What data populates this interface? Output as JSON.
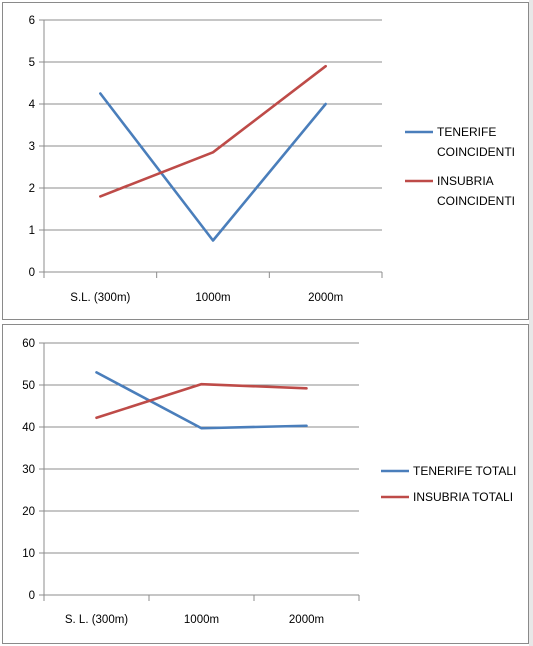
{
  "colors": {
    "tenerife": "#4a7ebb",
    "insubria": "#be4b48"
  },
  "chart_data": [
    {
      "type": "line",
      "title": "",
      "xlabel": "",
      "ylabel": "",
      "categories": [
        "S.L. (300m)",
        "1000m",
        "2000m"
      ],
      "ylim": [
        0,
        6
      ],
      "yticks": [
        "0",
        "1",
        "2",
        "3",
        "4",
        "5",
        "6"
      ],
      "grid": true,
      "legend": "right",
      "series": [
        {
          "name_lines": [
            "TENERIFE",
            "COINCIDENTI"
          ],
          "color": "#4a7ebb",
          "values": [
            4.25,
            0.75,
            4.0
          ]
        },
        {
          "name_lines": [
            "INSUBRIA",
            "COINCIDENTI"
          ],
          "color": "#be4b48",
          "values": [
            1.8,
            2.85,
            4.9
          ]
        }
      ]
    },
    {
      "type": "line",
      "title": "",
      "xlabel": "",
      "ylabel": "",
      "categories": [
        "S. L. (300m)",
        "1000m",
        "2000m"
      ],
      "ylim": [
        0,
        60
      ],
      "yticks": [
        "0",
        "10",
        "20",
        "30",
        "40",
        "50",
        "60"
      ],
      "grid": true,
      "legend": "right",
      "series": [
        {
          "name_lines": [
            "TENERIFE TOTALI"
          ],
          "color": "#4a7ebb",
          "values": [
            53.0,
            39.7,
            40.3
          ]
        },
        {
          "name_lines": [
            "INSUBRIA TOTALI"
          ],
          "color": "#be4b48",
          "values": [
            42.2,
            50.2,
            49.2
          ]
        }
      ]
    }
  ]
}
